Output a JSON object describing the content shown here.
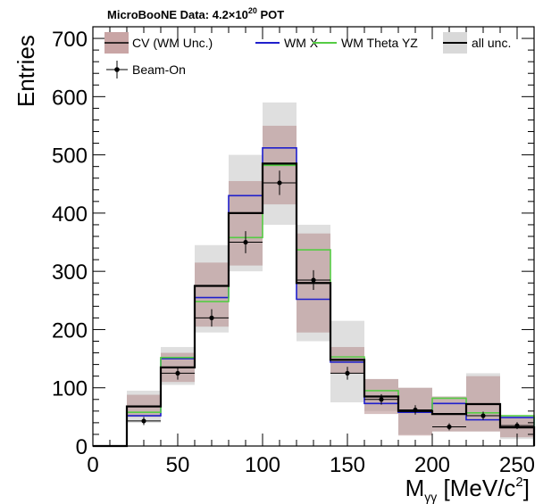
{
  "chart_data": {
    "type": "histogram",
    "title": {
      "prefix": "MicroBooNE Data: 4.2×10",
      "exp": "20",
      "suffix": " POT"
    },
    "xlabel": {
      "base": "M",
      "sub": "γγ",
      "mid": " [MeV/c",
      "sup": "2",
      "end": "]"
    },
    "ylabel": "Entries",
    "xlim": [
      0,
      260
    ],
    "ylim": [
      0,
      720
    ],
    "x_ticks": [
      0,
      50,
      100,
      150,
      200,
      250
    ],
    "x_tick_labels": [
      "0",
      "50",
      "100",
      "150",
      "200",
      "250"
    ],
    "y_ticks": [
      0,
      100,
      200,
      300,
      400,
      500,
      600,
      700
    ],
    "y_tick_labels": [
      "0",
      "100",
      "200",
      "300",
      "400",
      "500",
      "600",
      "700"
    ],
    "bin_edges": [
      0,
      20,
      40,
      60,
      80,
      100,
      120,
      140,
      160,
      180,
      200,
      220,
      240,
      260
    ],
    "series": [
      {
        "name": "CV (WM Unc.)",
        "kind": "band",
        "color": "#b58a8a",
        "values": [
          0,
          68,
          135,
          275,
          400,
          485,
          280,
          148,
          85,
          60,
          55,
          72,
          32
        ],
        "lower": [
          0,
          50,
          110,
          205,
          310,
          415,
          195,
          125,
          55,
          18,
          25,
          25,
          15
        ],
        "upper": [
          0,
          88,
          160,
          315,
          455,
          550,
          365,
          170,
          115,
          100,
          85,
          120,
          48
        ]
      },
      {
        "name": "WM X",
        "kind": "line",
        "color": "#1f1fcc",
        "values": [
          0,
          52,
          150,
          255,
          430,
          512,
          252,
          144,
          73,
          58,
          73,
          45,
          49
        ]
      },
      {
        "name": "WM Theta YZ",
        "kind": "line",
        "color": "#55cc44",
        "values": [
          0,
          58,
          152,
          248,
          358,
          482,
          337,
          153,
          95,
          60,
          82,
          57,
          52
        ]
      },
      {
        "name": "all unc.",
        "kind": "line_with_band",
        "color": "#000000",
        "band_color": "#d9d9d9",
        "values": [
          0,
          68,
          135,
          275,
          400,
          485,
          280,
          148,
          85,
          60,
          55,
          72,
          32
        ],
        "lower": [
          0,
          40,
          105,
          195,
          300,
          380,
          180,
          75,
          60,
          20,
          25,
          25,
          12
        ],
        "upper": [
          0,
          95,
          170,
          345,
          500,
          590,
          380,
          215,
          115,
          100,
          85,
          125,
          52
        ]
      },
      {
        "name": "Beam-On",
        "kind": "points",
        "color": "#000000",
        "x": [
          30,
          50,
          70,
          90,
          110,
          130,
          150,
          170,
          190,
          210,
          230,
          250
        ],
        "values": [
          43,
          125,
          220,
          350,
          452,
          285,
          125,
          80,
          62,
          33,
          52,
          35
        ],
        "errors": [
          7,
          11,
          15,
          19,
          21,
          17,
          11,
          9,
          8,
          6,
          7,
          6
        ]
      }
    ],
    "legend_position": "top",
    "grid": false
  }
}
